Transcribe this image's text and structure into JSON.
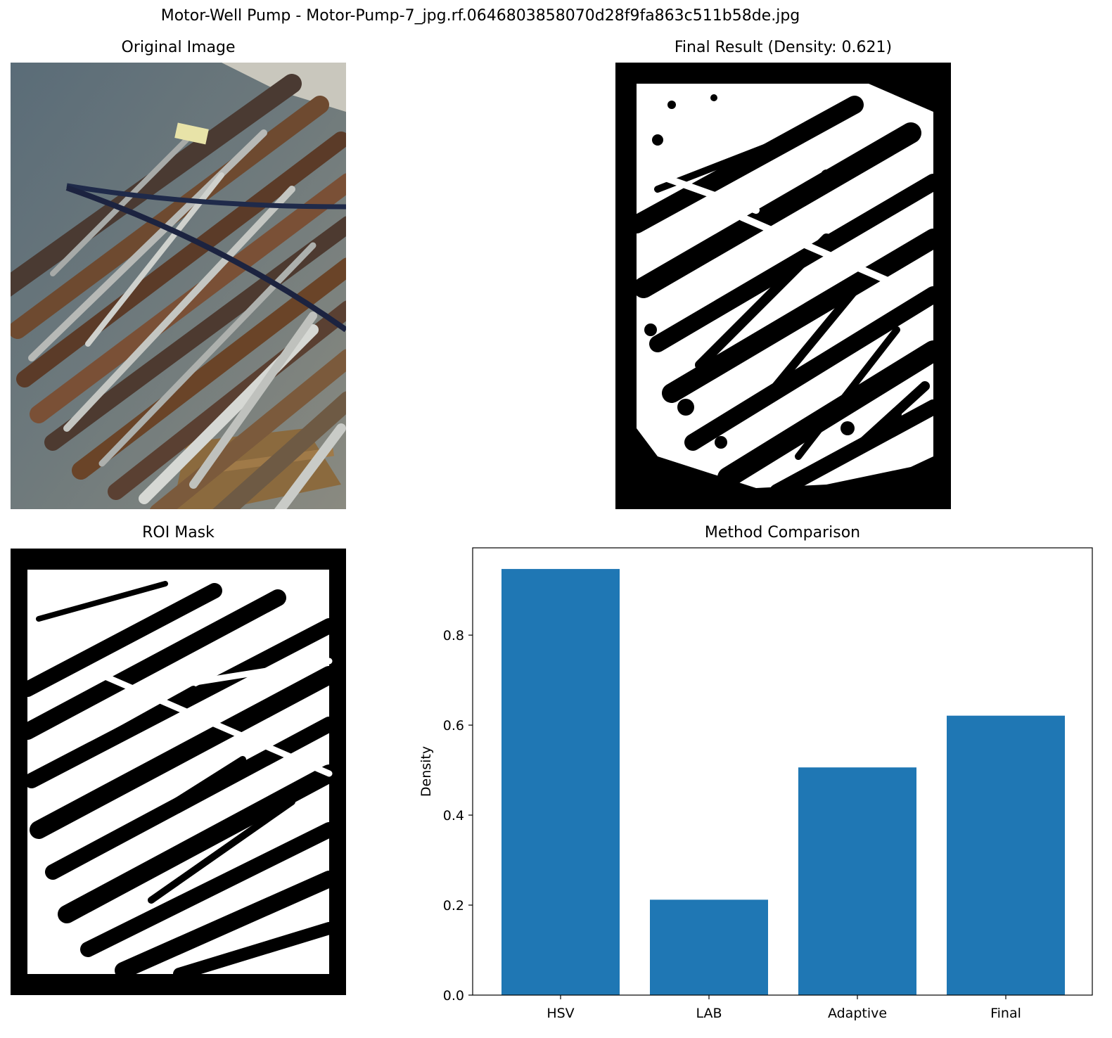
{
  "figure": {
    "suptitle": "Motor-Well Pump - Motor-Pump-7_jpg.rf.0646803858070d28f9fa863c511b58de.jpg"
  },
  "panels": {
    "original": {
      "title": "Original Image"
    },
    "final": {
      "title": "Final Result (Density: 0.621)"
    },
    "roi": {
      "title": "ROI Mask"
    },
    "comparison": {
      "title": "Method Comparison"
    }
  },
  "colors": {
    "bar": "#1f77b4",
    "mask_on": "#ffffff",
    "mask_off": "#000000"
  },
  "chart_data": {
    "type": "bar",
    "title": "Method Comparison",
    "categories": [
      "HSV",
      "LAB",
      "Adaptive",
      "Final"
    ],
    "values": [
      0.947,
      0.212,
      0.506,
      0.621
    ],
    "xlabel": "",
    "ylabel": "Density",
    "ylim": [
      0,
      0.994
    ],
    "yticks": [
      "0.0",
      "0.2",
      "0.4",
      "0.6",
      "0.8"
    ],
    "grid": false
  }
}
